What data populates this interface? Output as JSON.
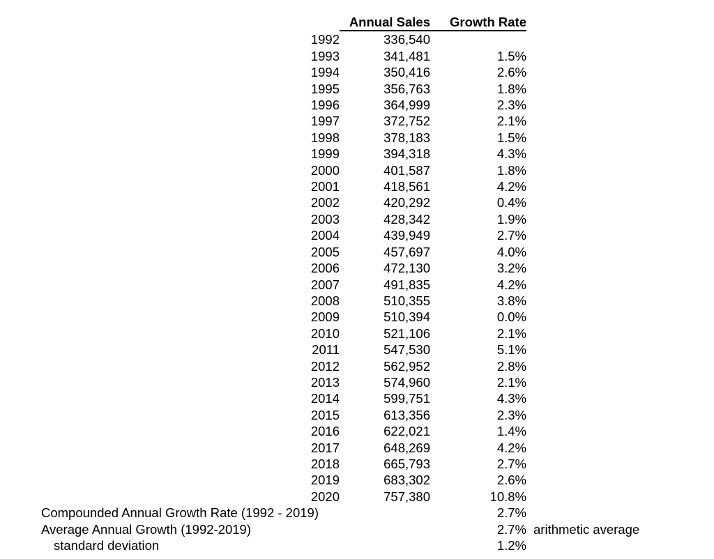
{
  "table": {
    "columns": {
      "year": "",
      "sales": "Annual Sales",
      "growth": "Growth Rate"
    },
    "rows": [
      {
        "year": "1992",
        "sales": "336,540",
        "growth": ""
      },
      {
        "year": "1993",
        "sales": "341,481",
        "growth": "1.5%"
      },
      {
        "year": "1994",
        "sales": "350,416",
        "growth": "2.6%"
      },
      {
        "year": "1995",
        "sales": "356,763",
        "growth": "1.8%"
      },
      {
        "year": "1996",
        "sales": "364,999",
        "growth": "2.3%"
      },
      {
        "year": "1997",
        "sales": "372,752",
        "growth": "2.1%"
      },
      {
        "year": "1998",
        "sales": "378,183",
        "growth": "1.5%"
      },
      {
        "year": "1999",
        "sales": "394,318",
        "growth": "4.3%"
      },
      {
        "year": "2000",
        "sales": "401,587",
        "growth": "1.8%"
      },
      {
        "year": "2001",
        "sales": "418,561",
        "growth": "4.2%"
      },
      {
        "year": "2002",
        "sales": "420,292",
        "growth": "0.4%"
      },
      {
        "year": "2003",
        "sales": "428,342",
        "growth": "1.9%"
      },
      {
        "year": "2004",
        "sales": "439,949",
        "growth": "2.7%"
      },
      {
        "year": "2005",
        "sales": "457,697",
        "growth": "4.0%"
      },
      {
        "year": "2006",
        "sales": "472,130",
        "growth": "3.2%"
      },
      {
        "year": "2007",
        "sales": "491,835",
        "growth": "4.2%"
      },
      {
        "year": "2008",
        "sales": "510,355",
        "growth": "3.8%"
      },
      {
        "year": "2009",
        "sales": "510,394",
        "growth": "0.0%"
      },
      {
        "year": "2010",
        "sales": "521,106",
        "growth": "2.1%"
      },
      {
        "year": "2011",
        "sales": "547,530",
        "growth": "5.1%"
      },
      {
        "year": "2012",
        "sales": "562,952",
        "growth": "2.8%"
      },
      {
        "year": "2013",
        "sales": "574,960",
        "growth": "2.1%"
      },
      {
        "year": "2014",
        "sales": "599,751",
        "growth": "4.3%"
      },
      {
        "year": "2015",
        "sales": "613,356",
        "growth": "2.3%"
      },
      {
        "year": "2016",
        "sales": "622,021",
        "growth": "1.4%"
      },
      {
        "year": "2017",
        "sales": "648,269",
        "growth": "4.2%"
      },
      {
        "year": "2018",
        "sales": "665,793",
        "growth": "2.7%"
      },
      {
        "year": "2019",
        "sales": "683,302",
        "growth": "2.6%"
      },
      {
        "year": "2020",
        "sales": "757,380",
        "growth": "10.8%"
      }
    ]
  },
  "summary": [
    {
      "label": "Compounded Annual Growth Rate (1992 - 2019)",
      "value": "2.7%",
      "note": ""
    },
    {
      "label": "Average Annual Growth (1992-2019)",
      "value": "2.7%",
      "note": "arithmetic average"
    },
    {
      "label": "standard deviation",
      "value": "1.2%",
      "note": ""
    }
  ],
  "colors": {
    "text": "#000000",
    "background": "#ffffff",
    "header_rule": "#000000"
  }
}
